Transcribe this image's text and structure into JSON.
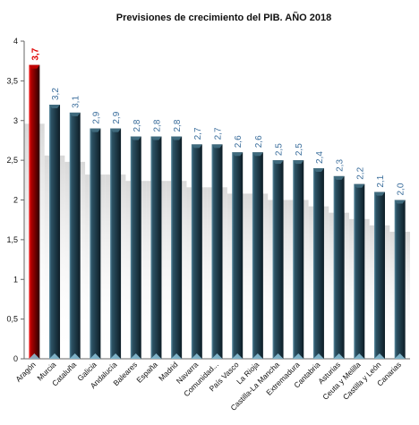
{
  "chart_data": {
    "type": "bar",
    "title": "Previsiones de crecimiento del PIB. AÑO 2018",
    "xlabel": "",
    "ylabel": "",
    "ylim": [
      0,
      4
    ],
    "yticks": [
      "0",
      "0,5",
      "1",
      "1,5",
      "2",
      "2,5",
      "3",
      "3,5",
      "4"
    ],
    "grid": false,
    "legend": "none",
    "categories": [
      "Aragón",
      "Murcia",
      "Cataluña",
      "Galicia",
      "Andalucía",
      "Baleares",
      "España",
      "Madrid",
      "Navarra",
      "Comunidad...",
      "País Vasco",
      "La Rioja",
      "Castilla-La Mancha",
      "Extremadura",
      "Cantabria",
      "Asturias",
      "Ceuta y Melilla",
      "Castilla y León",
      "Canarias"
    ],
    "values": [
      3.7,
      3.2,
      3.1,
      2.9,
      2.9,
      2.8,
      2.8,
      2.8,
      2.7,
      2.7,
      2.6,
      2.6,
      2.5,
      2.5,
      2.4,
      2.3,
      2.2,
      2.1,
      2.0
    ],
    "data_labels": [
      "3,7",
      "3,2",
      "3,1",
      "2,9",
      "2,9",
      "2,8",
      "2,8",
      "2,8",
      "2,7",
      "2,7",
      "2,6",
      "2,6",
      "2,5",
      "2,5",
      "2,4",
      "2,3",
      "2,2",
      "2,1",
      "2,0"
    ],
    "highlight_index": 0,
    "colors": {
      "bar": "#1f3f4f",
      "bar_top": "#3f6a7d",
      "highlight": "#7a0000",
      "highlight_top": "#c00000",
      "label": "#3b6e9c",
      "highlight_label": "#e00000"
    }
  }
}
